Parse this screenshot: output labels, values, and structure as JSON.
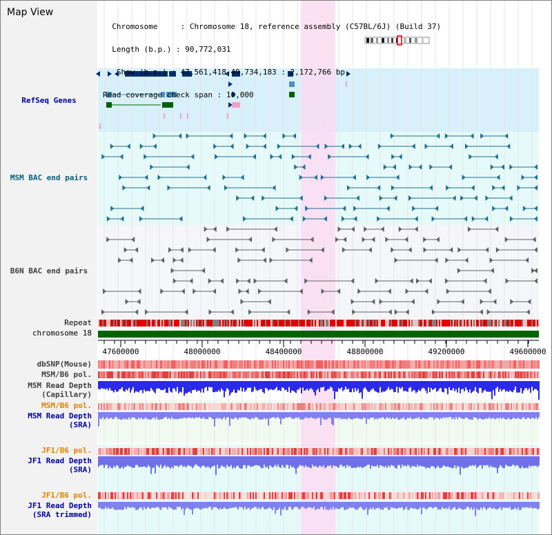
{
  "title": "Map View",
  "info": {
    "chromosome_key": "Chromosome",
    "chromosome_val": "Chromosome 18, reference assembly (C57BL/6J) (Build 37)",
    "length_key": "Length (b.p.)",
    "length_val": "90,772,031",
    "show_key": "Show (b.p.)",
    "show_val": "47,561,418-49,734,183 : 2,172,766 bp",
    "coverage_key": "Read coverage check span",
    "coverage_val": "10,000"
  },
  "tracks": {
    "refseq": "RefSeq Genes",
    "msm_bac": "MSM BAC end pairs",
    "b6n_bac": "B6N BAC end pairs",
    "repeat": "Repeat",
    "chromosome": "chromosome 18",
    "dbsnp": "dbSNP(Mouse)",
    "msm_b6_pol_1": "MSM/B6 pol.",
    "msm_read_depth_cap_1": "MSM Read Depth",
    "msm_read_depth_cap_2": "(Capillary)",
    "msm_b6_pol_2": "MSM/B6 pol.",
    "msm_read_depth_sra_1": "MSM Read Depth",
    "msm_read_depth_sra_2": "(SRA)",
    "jf1_b6_pol_1": "JF1/B6 pol.",
    "jf1_read_depth_sra_1": "JF1 Read Depth",
    "jf1_read_depth_sra_2": "(SRA)",
    "jf1_b6_pol_2": "JF1/B6 pol.",
    "jf1_read_depth_trim_1": "JF1 Read Depth",
    "jf1_read_depth_trim_2": "(SRA trimmed)"
  },
  "axis": {
    "ticks": [
      "47600000",
      "48000000",
      "48400000",
      "48800000",
      "49200000",
      "49600000"
    ]
  },
  "colors": {
    "refseq_bg": "#d8f0fa",
    "msm_bg": "#e6fafa",
    "b6n_bg": "#f4f6f9",
    "highlight": "#fadcf2",
    "chromosome_bar": "#006400",
    "repeat_red": "#e00000",
    "depth_blue": "#2a2ae8",
    "depth_light": "#8080f0",
    "label_blue": "#0000a0",
    "label_orange": "#e08000",
    "label_gray": "#404040",
    "label_teal": "#006080"
  }
}
